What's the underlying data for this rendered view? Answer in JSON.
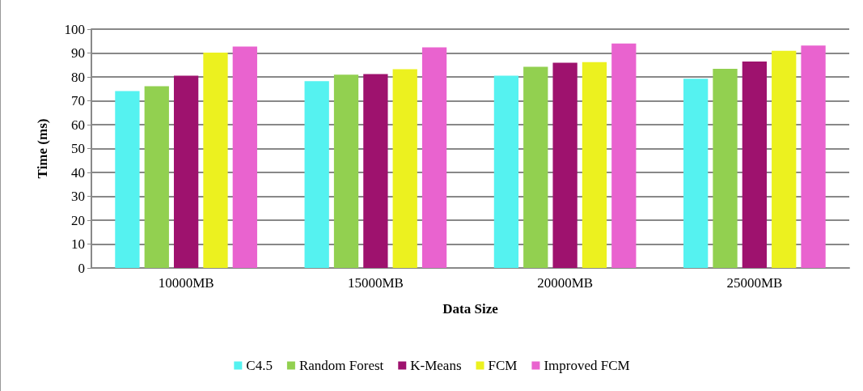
{
  "chart_data": {
    "type": "bar",
    "xlabel": "Data Size",
    "ylabel": "Time (ms)",
    "categories": [
      "10000MB",
      "15000MB",
      "20000MB",
      "25000MB"
    ],
    "series": [
      {
        "name": "C4.5",
        "color": "#55f2f0",
        "values": [
          74.1,
          78.2,
          80.5,
          79.2
        ]
      },
      {
        "name": "Random Forest",
        "color": "#92d050",
        "values": [
          76.1,
          80.9,
          84.2,
          83.4
        ]
      },
      {
        "name": "K-Means",
        "color": "#9e126e",
        "values": [
          80.5,
          81.2,
          85.9,
          86.4
        ]
      },
      {
        "name": "FCM",
        "color": "#ecf11f",
        "values": [
          90.2,
          83.2,
          86.2,
          90.9
        ]
      },
      {
        "name": "Improved FCM",
        "color": "#e963cf",
        "values": [
          92.7,
          92.4,
          94.0,
          93.1
        ]
      }
    ],
    "ylim": [
      0,
      100
    ],
    "yticks": [
      0,
      10,
      20,
      30,
      40,
      50,
      60,
      70,
      80,
      90,
      100
    ],
    "grid": "y",
    "legend": "bottom"
  }
}
